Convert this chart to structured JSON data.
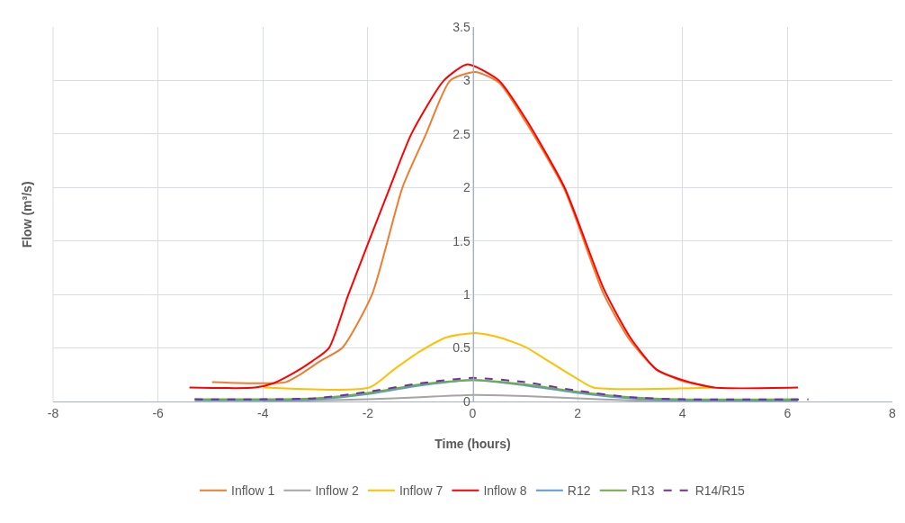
{
  "chart_data": {
    "type": "line",
    "xlabel": "Time (hours)",
    "ylabel": "Flow (m³/s)",
    "xlim": [
      -8,
      8
    ],
    "xticks": [
      -8,
      -6,
      -4,
      -2,
      0,
      2,
      4,
      6,
      8
    ],
    "ylim": [
      0,
      3.5
    ],
    "yticks": [
      0,
      0.5,
      1,
      1.5,
      2,
      2.5,
      3,
      3.5
    ],
    "grid": true,
    "legend": "bottom",
    "marker": "none",
    "series": [
      {
        "name": "Inflow 1",
        "color": "#ed7d31",
        "x": [
          -4.97,
          -3.57,
          -3.3,
          -2.9,
          -2.49,
          -1.92,
          -1.34,
          -0.89,
          -0.43,
          0.05,
          0.5,
          1,
          1.75,
          2.5,
          3,
          3.5,
          4,
          4.6
        ],
        "values": [
          0.18,
          0.18,
          0.25,
          0.38,
          0.5,
          1,
          2,
          2.5,
          3,
          3.08,
          2.98,
          2.62,
          1.98,
          1.0,
          0.57,
          0.3,
          0.19,
          0.13
        ]
      },
      {
        "name": "Inflow 2",
        "color": "#a5a5a5",
        "x": [
          -4,
          -3,
          -2,
          -1,
          0,
          1,
          2,
          3,
          4,
          6.2
        ],
        "values": [
          0,
          0.01,
          0.02,
          0.04,
          0.06,
          0.05,
          0.03,
          0.01,
          0,
          0
        ]
      },
      {
        "name": "Inflow 7",
        "color": "#ffc000",
        "x": [
          -3.98,
          -1.97,
          -1.5,
          -1,
          -0.5,
          0.05,
          0.5,
          1,
          1.5,
          2,
          2.3,
          4.6
        ],
        "values": [
          0.13,
          0.13,
          0.3,
          0.47,
          0.6,
          0.64,
          0.6,
          0.51,
          0.36,
          0.21,
          0.13,
          0.13
        ]
      },
      {
        "name": "Inflow 8",
        "color": "#ff0000",
        "x": [
          -5.4,
          -4.15,
          -3.8,
          -3.4,
          -3.05,
          -2.74,
          -2.37,
          -1.58,
          -1.17,
          -0.55,
          -0.1,
          0.5,
          1,
          1.75,
          2.5,
          3,
          3.5,
          4,
          4.6,
          6.2
        ],
        "values": [
          0.13,
          0.13,
          0.17,
          0.27,
          0.38,
          0.5,
          1,
          2,
          2.5,
          3,
          3.15,
          3.0,
          2.65,
          2.0,
          1.05,
          0.6,
          0.3,
          0.2,
          0.13,
          0.13
        ]
      },
      {
        "name": "R12",
        "color": "#5b9bd5",
        "x": [
          -5.3,
          -4,
          -3,
          -2,
          -1,
          0,
          1,
          2,
          3,
          4,
          6.2
        ],
        "values": [
          0.01,
          0.01,
          0.02,
          0.07,
          0.15,
          0.2,
          0.15,
          0.08,
          0.03,
          0.01,
          0.01
        ]
      },
      {
        "name": "R13",
        "color": "#70ad47",
        "x": [
          -5.3,
          -4,
          -3,
          -2,
          -1,
          0,
          1,
          2,
          3,
          4,
          6.2
        ],
        "values": [
          0.02,
          0.02,
          0.03,
          0.08,
          0.16,
          0.2,
          0.16,
          0.09,
          0.04,
          0.02,
          0.02
        ]
      },
      {
        "name": "R14/R15",
        "color": "#7030a0",
        "line_style": "dashed",
        "x": [
          -5.3,
          -4,
          -3,
          -2,
          -1,
          0,
          1,
          2,
          3,
          4,
          6.4
        ],
        "values": [
          0.02,
          0.02,
          0.03,
          0.09,
          0.17,
          0.22,
          0.18,
          0.1,
          0.04,
          0.02,
          0.02
        ]
      }
    ]
  }
}
